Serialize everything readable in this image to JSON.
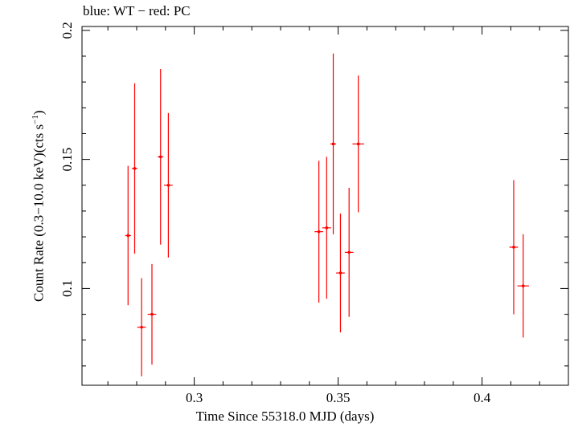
{
  "chart_data": {
    "type": "scatter",
    "caption": "blue: WT − red: PC",
    "xlabel": "Time Since 55318.0 MJD (days)",
    "ylabel_main": "Count Rate (0.3−10.0 keV)(cts s",
    "ylabel_sup": "−1",
    "ylabel_end": ")",
    "xlim": [
      0.261,
      0.43
    ],
    "ylim": [
      0.0625,
      0.2015
    ],
    "xticks_major": [
      0.3,
      0.35,
      0.4
    ],
    "xtick_labels": [
      "0.3",
      "0.35",
      "0.4"
    ],
    "yticks_major": [
      0.1,
      0.15,
      0.2
    ],
    "ytick_labels": [
      "0.1",
      "0.15",
      "0.2"
    ],
    "color_pc": "#ff0000",
    "series": [
      {
        "points": [
          {
            "x": 0.277,
            "xerr": 0.001,
            "y": 0.1205,
            "yerr": 0.027
          },
          {
            "x": 0.2793,
            "xerr": 0.001,
            "y": 0.1465,
            "yerr": 0.033
          },
          {
            "x": 0.2817,
            "xerr": 0.0015,
            "y": 0.085,
            "yerr": 0.019
          },
          {
            "x": 0.2853,
            "xerr": 0.0015,
            "y": 0.09,
            "yerr": 0.0195
          },
          {
            "x": 0.2883,
            "xerr": 0.001,
            "y": 0.151,
            "yerr": 0.034
          },
          {
            "x": 0.291,
            "xerr": 0.0015,
            "y": 0.14,
            "yerr": 0.028
          },
          {
            "x": 0.3433,
            "xerr": 0.0015,
            "y": 0.122,
            "yerr": 0.0275
          },
          {
            "x": 0.346,
            "xerr": 0.0015,
            "y": 0.1235,
            "yerr": 0.0275
          },
          {
            "x": 0.3483,
            "xerr": 0.001,
            "y": 0.156,
            "yerr": 0.035
          },
          {
            "x": 0.3508,
            "xerr": 0.0015,
            "y": 0.106,
            "yerr": 0.023
          },
          {
            "x": 0.3538,
            "xerr": 0.0015,
            "y": 0.114,
            "yerr": 0.025
          },
          {
            "x": 0.357,
            "xerr": 0.002,
            "y": 0.156,
            "yerr": 0.0265
          },
          {
            "x": 0.411,
            "xerr": 0.0015,
            "y": 0.116,
            "yerr": 0.026
          },
          {
            "x": 0.4143,
            "xerr": 0.002,
            "y": 0.101,
            "yerr": 0.02
          }
        ]
      }
    ]
  }
}
